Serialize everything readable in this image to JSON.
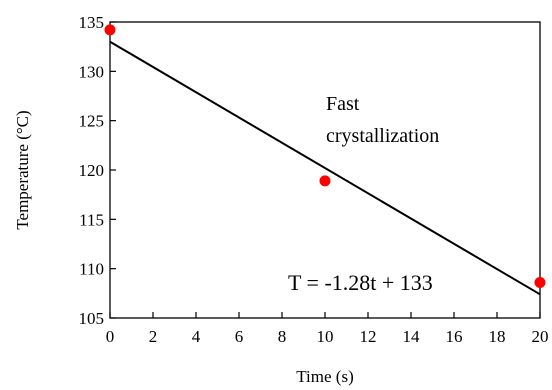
{
  "chart_data": {
    "type": "scatter",
    "title": "",
    "xlabel": "Time (s)",
    "ylabel": "Temperature (°C)",
    "xlim": [
      0,
      20
    ],
    "ylim": [
      105,
      135
    ],
    "x_ticks": [
      0,
      2,
      4,
      6,
      8,
      10,
      12,
      14,
      16,
      18,
      20
    ],
    "y_ticks": [
      105,
      110,
      115,
      120,
      125,
      130,
      135
    ],
    "grid": false,
    "series": [
      {
        "points": [
          {
            "x": 0,
            "y": 134.2
          },
          {
            "x": 10,
            "y": 118.9
          },
          {
            "x": 20,
            "y": 108.6
          }
        ],
        "color": "#ff0000"
      }
    ],
    "trendline": {
      "slope": -1.28,
      "intercept": 133,
      "color": "#000000"
    },
    "annotations": {
      "label_line1": "Fast",
      "label_line2": "crystallization",
      "equation": "T = -1.28t + 133"
    }
  }
}
